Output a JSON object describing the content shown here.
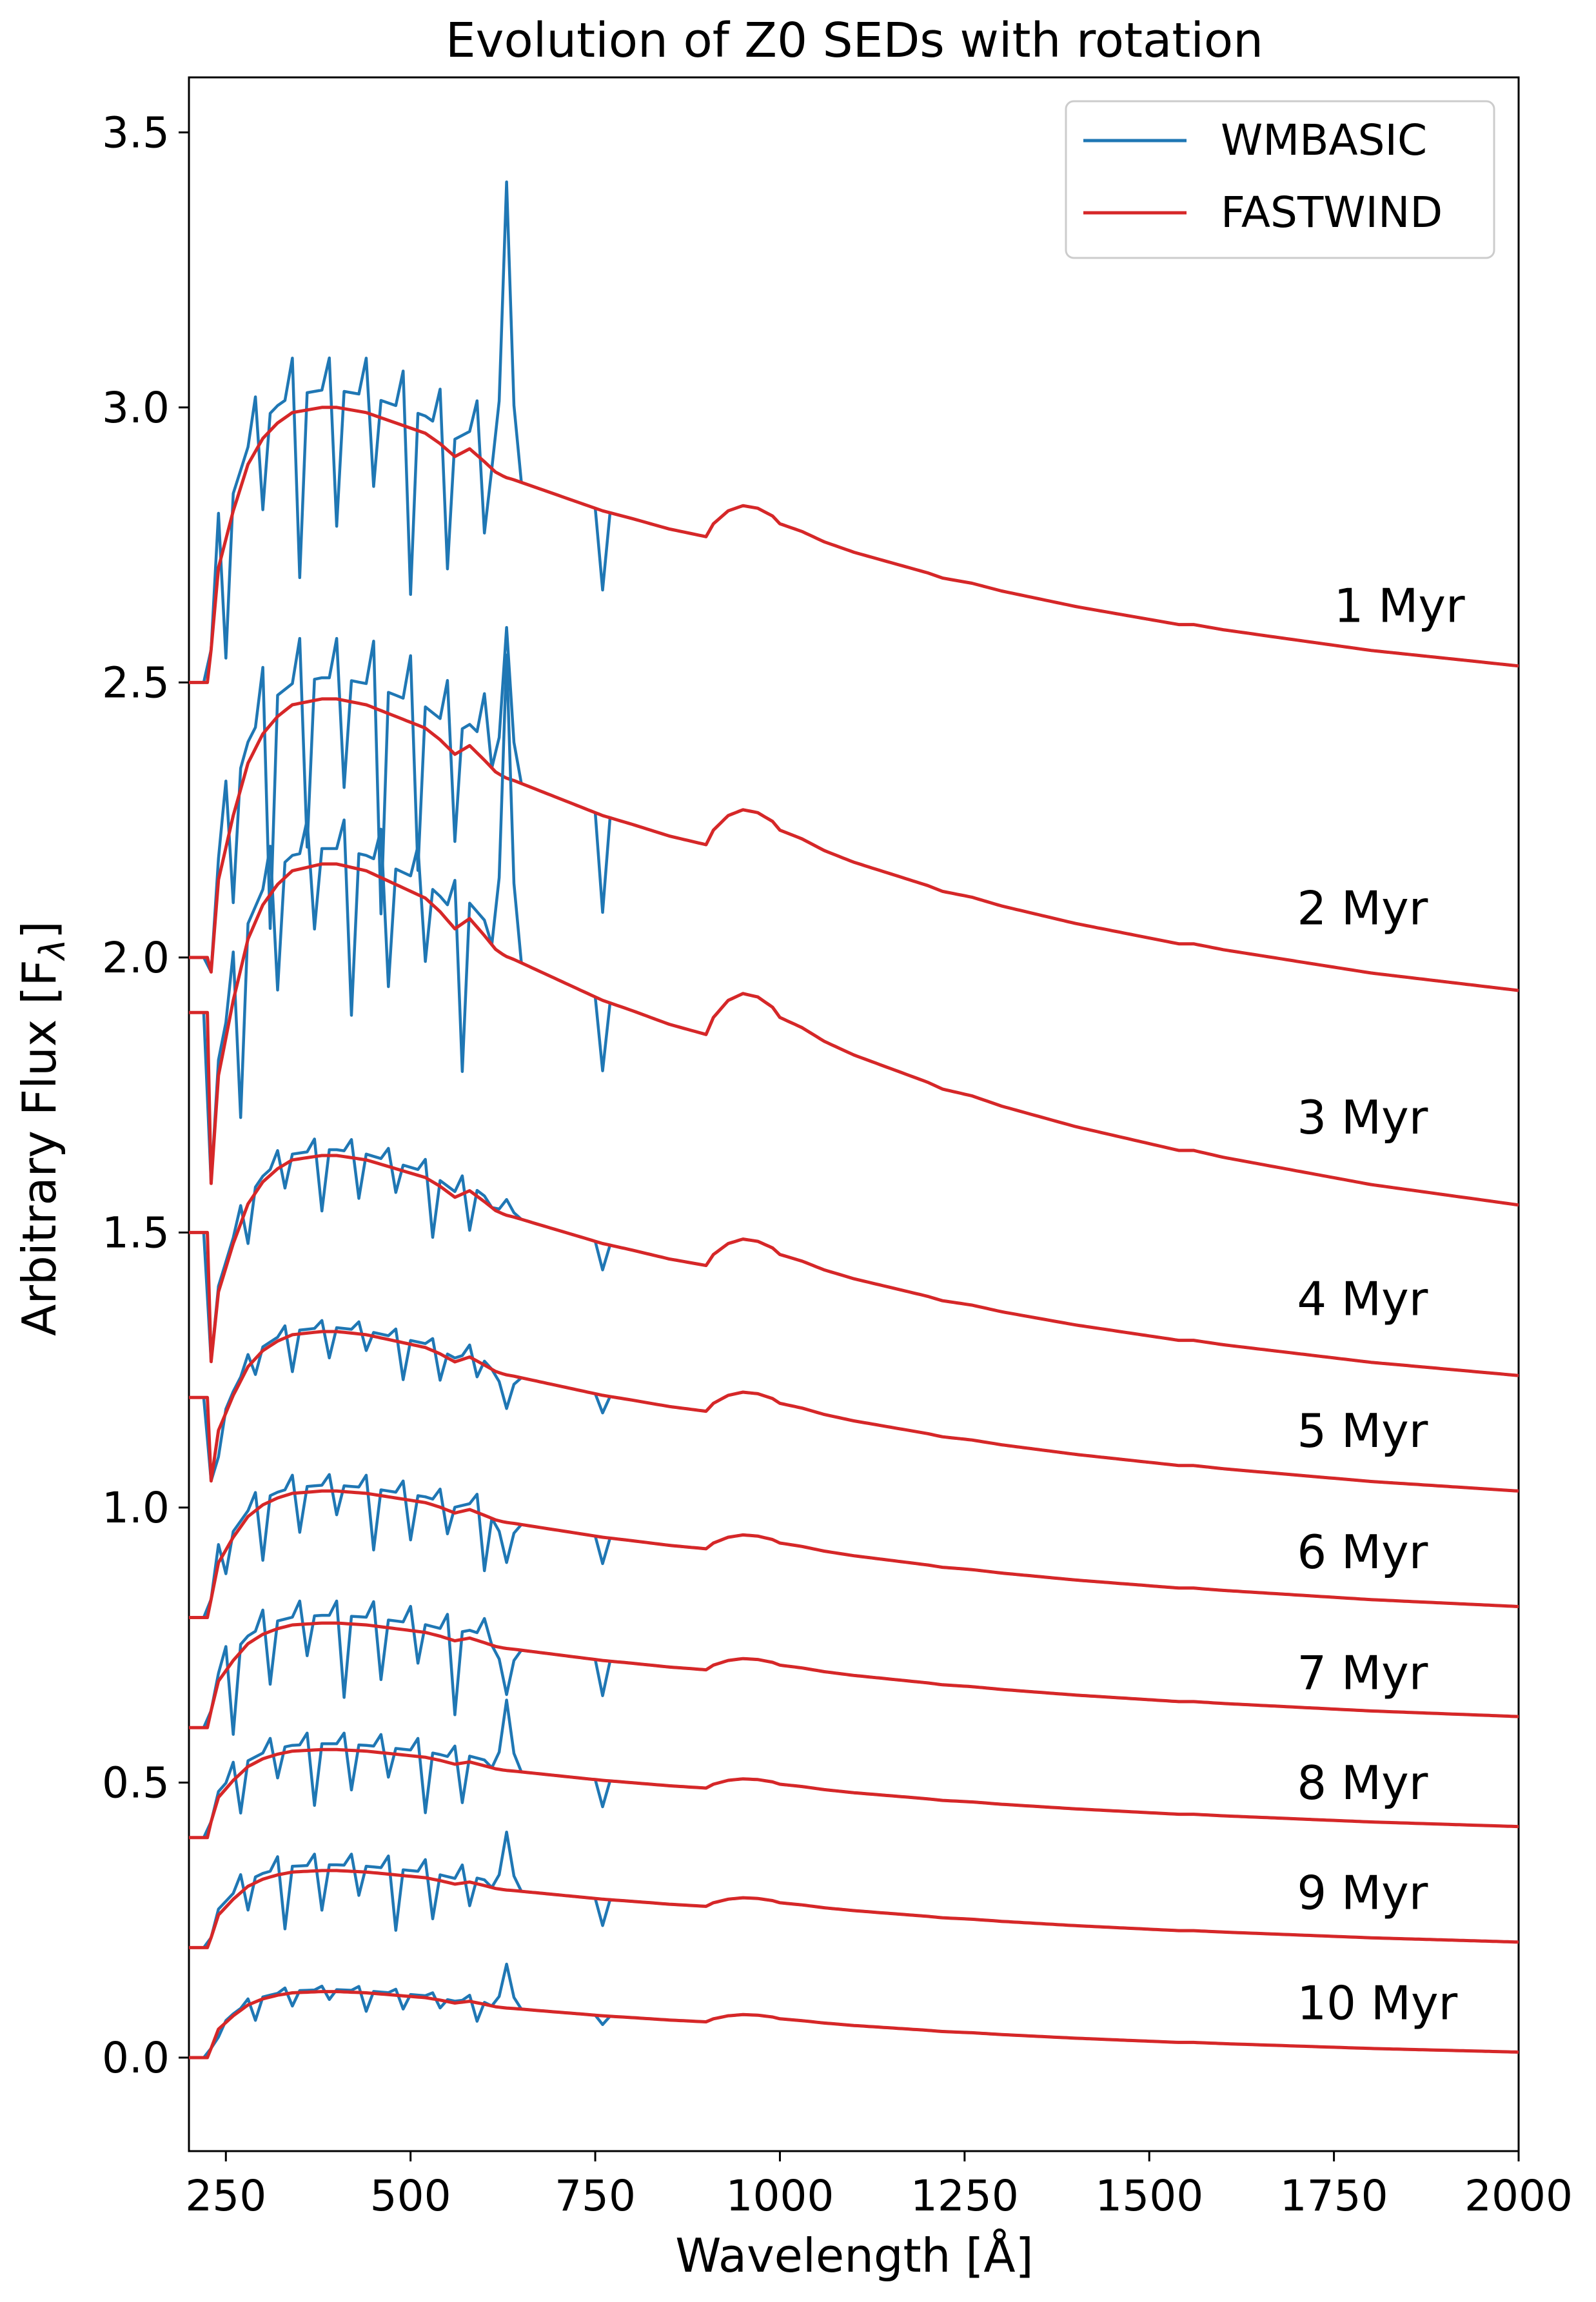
{
  "chart_data": {
    "type": "line",
    "title": "Evolution of Z0 SEDs with rotation",
    "xlabel": "Wavelength [Å]",
    "ylabel": "Arbitrary Flux [F",
    "ylabel_sub": "λ",
    "ylabel_close": "]",
    "xlim": [
      200,
      2000
    ],
    "ylim": [
      -0.17,
      3.6
    ],
    "xticks": [
      250,
      500,
      750,
      1000,
      1250,
      1500,
      1750,
      2000
    ],
    "xtick_labels": [
      "250",
      "500",
      "750",
      "1000",
      "1250",
      "1500",
      "1750",
      "2000"
    ],
    "yticks": [
      0.0,
      0.5,
      1.0,
      1.5,
      2.0,
      2.5,
      3.0,
      3.5
    ],
    "ytick_labels": [
      "0.0",
      "0.5",
      "1.0",
      "1.5",
      "2.0",
      "2.5",
      "3.0",
      "3.5"
    ],
    "grid": false,
    "legend_position": "top-right",
    "series_styles": [
      {
        "name": "WMBASIC",
        "color": "#1f77b4"
      },
      {
        "name": "FASTWIND",
        "color": "#d62728"
      }
    ],
    "template_x": [
      200,
      228,
      240,
      260,
      280,
      300,
      320,
      340,
      360,
      380,
      400,
      420,
      440,
      460,
      480,
      500,
      520,
      540,
      560,
      580,
      600,
      615,
      628,
      640,
      660,
      700,
      740,
      760,
      800,
      850,
      900,
      910,
      930,
      950,
      970,
      990,
      1000,
      1030,
      1060,
      1100,
      1150,
      1200,
      1220,
      1240,
      1260,
      1300,
      1400,
      1500,
      1540,
      1560,
      1600,
      1700,
      1800,
      1900,
      2000
    ],
    "template_shape": [
      0.0,
      0.0,
      0.38,
      0.6,
      0.78,
      0.88,
      0.94,
      0.98,
      0.99,
      1.0,
      1.0,
      0.99,
      0.98,
      0.96,
      0.94,
      0.92,
      0.9,
      0.86,
      0.81,
      0.84,
      0.79,
      0.75,
      0.73,
      0.72,
      0.7,
      0.66,
      0.62,
      0.6,
      0.57,
      0.53,
      0.5,
      0.55,
      0.6,
      0.62,
      0.61,
      0.58,
      0.55,
      0.52,
      0.48,
      0.44,
      0.4,
      0.36,
      0.34,
      0.33,
      0.32,
      0.29,
      0.23,
      0.18,
      0.16,
      0.16,
      0.14,
      0.1,
      0.06,
      0.03,
      0.0
    ],
    "curves": [
      {
        "label": "1 Myr",
        "base": 2.5,
        "end": 2.53,
        "peak": 3.0,
        "spike": 3.41,
        "dip": 2.64,
        "noise_top": 3.09
      },
      {
        "label": "2 Myr",
        "base": 2.0,
        "end": 1.94,
        "peak": 2.47,
        "spike": 2.6,
        "dip": 2.06,
        "noise_top": 2.58
      },
      {
        "label": "3 Myr",
        "base": 1.9,
        "end": 1.55,
        "peak": 2.17,
        "spike": 2.55,
        "dip": 1.7,
        "noise_top": 2.25
      },
      {
        "label": "4 Myr",
        "base": 1.5,
        "end": 1.24,
        "peak": 1.64,
        "spike": 1.56,
        "dip": 1.53,
        "noise_top": 1.67
      },
      {
        "label": "5 Myr",
        "base": 1.2,
        "end": 1.03,
        "peak": 1.32,
        "spike": 1.18,
        "dip": 1.22,
        "noise_top": 1.34
      },
      {
        "label": "6 Myr",
        "base": 0.8,
        "end": 0.82,
        "peak": 1.03,
        "spike": 0.9,
        "dip": 0.86,
        "noise_top": 1.06
      },
      {
        "label": "7 Myr",
        "base": 0.6,
        "end": 0.62,
        "peak": 0.79,
        "spike": 0.66,
        "dip": 0.6,
        "noise_top": 0.83
      },
      {
        "label": "8 Myr",
        "base": 0.4,
        "end": 0.42,
        "peak": 0.56,
        "spike": 0.65,
        "dip": 0.42,
        "noise_top": 0.59
      },
      {
        "label": "9 Myr",
        "base": 0.2,
        "end": 0.21,
        "peak": 0.34,
        "spike": 0.41,
        "dip": 0.2,
        "noise_top": 0.37
      },
      {
        "label": "10 Myr",
        "base": 0.0,
        "end": 0.01,
        "peak": 0.12,
        "spike": 0.17,
        "dip": 0.0,
        "noise_top": 0.13
      }
    ],
    "curve_label_x": [
      1750,
      1700,
      1700,
      1700,
      1700,
      1700,
      1700,
      1700,
      1700,
      1700
    ],
    "curve_label_y": [
      2.61,
      2.06,
      1.68,
      1.35,
      1.11,
      0.89,
      0.67,
      0.47,
      0.27,
      0.07
    ]
  }
}
